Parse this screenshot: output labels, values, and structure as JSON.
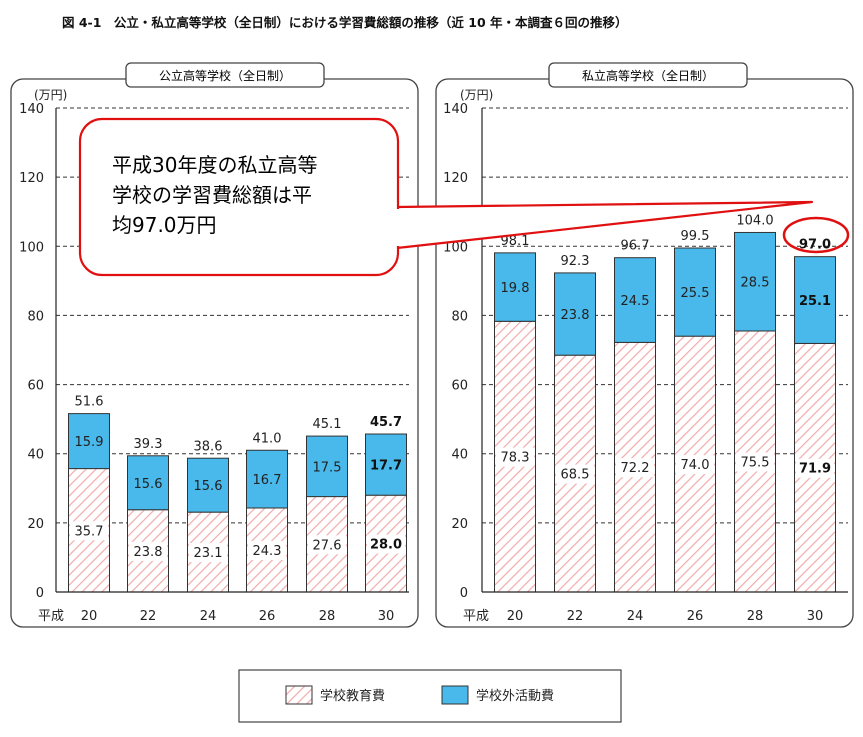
{
  "figure_title": "図 4-1　公立・私立高等学校（全日制）における学習費総額の推移（近 10 年・本調査６回の推移）",
  "callout": {
    "lines": [
      "平成30年度の私立高等",
      "学校の学習費総額は平",
      "均97.0万円"
    ]
  },
  "legend": [
    {
      "label": "学校教育費",
      "pattern": "hatch"
    },
    {
      "label": "学校外活動費",
      "color": "#49b8ea"
    }
  ],
  "colors": {
    "outside": "#49b8ea",
    "hatch_line": "#f2aaaa",
    "frame": "#444444",
    "callout_border": "#e01010"
  },
  "chart_data": [
    {
      "type": "bar",
      "stacked": true,
      "title": "公立高等学校（全日制）",
      "ylabel": "(万円)",
      "x_prefix": "平成",
      "categories": [
        "20",
        "22",
        "24",
        "26",
        "28",
        "30"
      ],
      "ylim": [
        0,
        140
      ],
      "yticks": [
        "0",
        "20",
        "40",
        "60",
        "80",
        "100",
        "120",
        "140"
      ],
      "series": [
        {
          "name": "学校教育費",
          "values": [
            35.7,
            23.8,
            23.1,
            24.3,
            27.6,
            28.0
          ],
          "labels": [
            "35.7",
            "23.8",
            "23.1",
            "24.3",
            "27.6",
            "28.0"
          ]
        },
        {
          "name": "学校外活動費",
          "values": [
            15.9,
            15.6,
            15.6,
            16.7,
            17.5,
            17.7
          ],
          "labels": [
            "15.9",
            "15.6",
            "15.6",
            "16.7",
            "17.5",
            "17.7"
          ]
        }
      ],
      "totals": [
        51.6,
        39.3,
        38.6,
        41.0,
        45.1,
        45.7
      ],
      "total_labels": [
        "51.6",
        "39.3",
        "38.6",
        "41.0",
        "45.1",
        "45.7"
      ],
      "grid": "dashed"
    },
    {
      "type": "bar",
      "stacked": true,
      "title": "私立高等学校（全日制）",
      "ylabel": "(万円)",
      "x_prefix": "平成",
      "categories": [
        "20",
        "22",
        "24",
        "26",
        "28",
        "30"
      ],
      "ylim": [
        0,
        140
      ],
      "yticks": [
        "0",
        "20",
        "40",
        "60",
        "80",
        "100",
        "120",
        "140"
      ],
      "series": [
        {
          "name": "学校教育費",
          "values": [
            78.3,
            68.5,
            72.2,
            74.0,
            75.5,
            71.9
          ],
          "labels": [
            "78.3",
            "68.5",
            "72.2",
            "74.0",
            "75.5",
            "71.9"
          ]
        },
        {
          "name": "学校外活動費",
          "values": [
            19.8,
            23.8,
            24.5,
            25.5,
            28.5,
            25.1
          ],
          "labels": [
            "19.8",
            "23.8",
            "24.5",
            "25.5",
            "28.5",
            "25.1"
          ]
        }
      ],
      "totals": [
        98.1,
        92.3,
        96.7,
        99.5,
        104.0,
        97.0
      ],
      "total_labels": [
        "98.1",
        "92.3",
        "96.7",
        "99.5",
        "104.0",
        "97.0"
      ],
      "grid": "dashed"
    }
  ]
}
